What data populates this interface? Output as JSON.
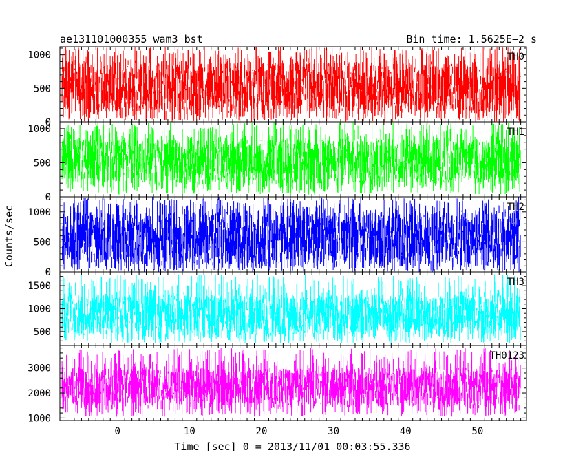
{
  "header": {
    "left": "ae131101000355_wam3_bst",
    "right": "Bin time: 1.5625E−2 s"
  },
  "chart_data": {
    "type": "line",
    "xlabel": "Time [sec] 0 = 2013/11/01 00:03:55.336",
    "ylabel": "Counts/sec",
    "xlim": [
      -8.0,
      56.8
    ],
    "data_x_range": [
      -7.7,
      56.0
    ],
    "x_ticks": [
      0,
      10,
      20,
      30,
      40,
      50
    ],
    "x_tick_labels": [
      "0",
      "10",
      "20",
      "30",
      "40",
      "50"
    ],
    "panels": [
      {
        "name": "TH0",
        "color": "#ff0000",
        "ylim": [
          0,
          1120
        ],
        "y_ticks": [
          0,
          500,
          1000
        ],
        "y_tick_labels": [
          "0",
          "500",
          "1000"
        ],
        "approx_band": [
          150,
          900
        ],
        "approx_range": [
          0,
          1120
        ]
      },
      {
        "name": "TH1",
        "color": "#00ff00",
        "ylim": [
          0,
          1100
        ],
        "y_ticks": [
          0,
          500,
          1000
        ],
        "y_tick_labels": [
          "0",
          "500",
          "1000"
        ],
        "approx_band": [
          200,
          850
        ],
        "approx_range": [
          30,
          1100
        ]
      },
      {
        "name": "TH2",
        "color": "#0000ff",
        "ylim": [
          0,
          1250
        ],
        "y_ticks": [
          0,
          500,
          1000
        ],
        "y_tick_labels": [
          "0",
          "500",
          "1000"
        ],
        "approx_band": [
          150,
          1000
        ],
        "approx_range": [
          0,
          1250
        ]
      },
      {
        "name": "TH3",
        "color": "#00ffff",
        "ylim": [
          200,
          1800
        ],
        "y_ticks": [
          500,
          1000,
          1500
        ],
        "y_tick_labels": [
          "500",
          "1000",
          "1500"
        ],
        "approx_band": [
          450,
          1300
        ],
        "approx_range": [
          250,
          1750
        ]
      },
      {
        "name": "TH0123",
        "color": "#ff00ff",
        "ylim": [
          900,
          3900
        ],
        "y_ticks": [
          1000,
          2000,
          3000
        ],
        "y_tick_labels": [
          "1000",
          "2000",
          "3000"
        ],
        "approx_band": [
          1500,
          3000
        ],
        "approx_range": [
          1050,
          3800
        ]
      }
    ]
  }
}
